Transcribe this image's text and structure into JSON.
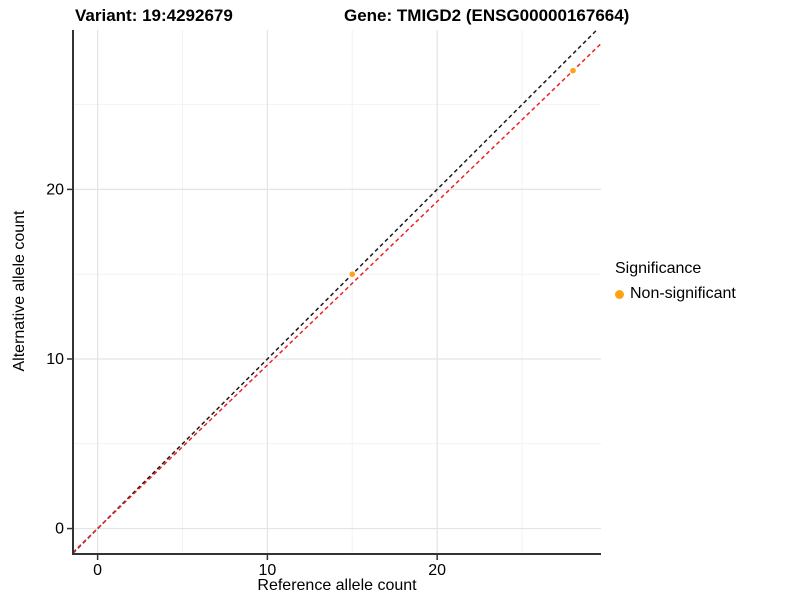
{
  "title": {
    "left": "Variant: 19:4292679",
    "right": "Gene: TMIGD2 (ENSG00000167664)"
  },
  "axes": {
    "x": {
      "label": "Reference allele count",
      "major_ticks": [
        0,
        10,
        20
      ],
      "minor_ticks": [
        5,
        15,
        25
      ]
    },
    "y": {
      "label": "Alternative allele count",
      "major_ticks": [
        0,
        10,
        20
      ],
      "minor_ticks": [
        5,
        15,
        25
      ]
    }
  },
  "legend": {
    "title": "Significance",
    "items": [
      {
        "label": "Non-significant",
        "color": "#FFA216"
      }
    ]
  },
  "chart_data": {
    "type": "scatter",
    "title": "Variant: 19:4292679 | Gene: TMIGD2 (ENSG00000167664)",
    "xlabel": "Reference allele count",
    "ylabel": "Alternative allele count",
    "xlim": [
      -1.45,
      29.65
    ],
    "ylim": [
      -1.5,
      29.4
    ],
    "grid": true,
    "legend_position": "right",
    "point_color": "#FFA216",
    "points": [
      {
        "x": 15,
        "y": 15,
        "series": "Non-significant"
      },
      {
        "x": 28,
        "y": 27,
        "series": "Non-significant"
      }
    ],
    "lines": [
      {
        "name": "identity",
        "slope": 1.0,
        "intercept": 0,
        "color": "#1a1a1a",
        "style": "dashed"
      },
      {
        "name": "fit",
        "slope": 0.9643,
        "intercept": 0,
        "color": "#ee2222",
        "style": "dashed"
      }
    ],
    "colors": {
      "major_grid": "#e4e4e4",
      "minor_grid": "#f2f2f2",
      "axis_line": "#333333",
      "tick": "#333333",
      "tick_label": "#000000"
    }
  }
}
